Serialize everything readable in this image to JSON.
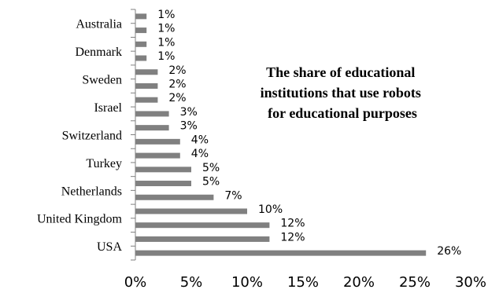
{
  "chart_data": {
    "type": "bar",
    "orientation": "horizontal",
    "title_lines": [
      "The share of educational",
      "institutions that use robots",
      "for educational purposes"
    ],
    "categories": [
      "USA",
      "",
      "United Kingdom",
      "",
      "Netherlands",
      "",
      "Turkey",
      "",
      "Switzerland",
      "",
      "Israel",
      "",
      "Sweden",
      "",
      "Denmark",
      "",
      "Australia",
      ""
    ],
    "values": [
      26,
      12,
      12,
      10,
      7,
      5,
      5,
      4,
      4,
      3,
      3,
      2,
      2,
      2,
      1,
      1,
      1,
      1
    ],
    "data_labels": [
      "26%",
      "12%",
      "12%",
      "10%",
      "7%",
      "5%",
      "5%",
      "4%",
      "4%",
      "3%",
      "3%",
      "2%",
      "2%",
      "2%",
      "1%",
      "1%",
      "1%",
      "1%"
    ],
    "xlim": [
      0,
      30
    ],
    "xticks": [
      0,
      5,
      10,
      15,
      20,
      25,
      30
    ],
    "xtick_labels": [
      "0%",
      "5%",
      "10%",
      "15%",
      "20%",
      "25%",
      "30%"
    ],
    "bar_color": "#808080",
    "axis_color": "#808080",
    "grid": false,
    "legend": "none"
  }
}
